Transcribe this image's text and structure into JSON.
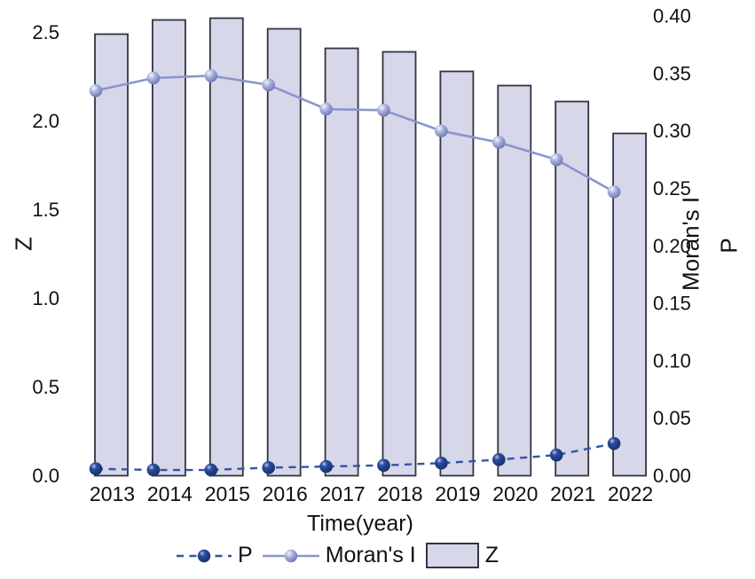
{
  "figure": {
    "xlabel": "Time(year)",
    "ylabel_left": "Z",
    "ylabel_right_line1": "Moran's I",
    "ylabel_right_line2": "P"
  },
  "legend": {
    "p_label": "P",
    "morans_label": "Moran's I",
    "z_label": "Z"
  },
  "colors": {
    "background": "#ffffff",
    "text": "#111111",
    "bar_fill": "#d7d7ea",
    "bar_stroke": "#333340",
    "morans_line": "#8b94cd",
    "morans_marker_highlight": "#f6f7fc",
    "morans_marker_mid": "#aab3de",
    "morans_marker_dark": "#6b76b4",
    "p_line": "#3254a6",
    "p_marker_highlight": "#b9c8ec",
    "p_marker_mid": "#2b4c9f",
    "p_marker_dark": "#173068"
  },
  "chart_data": {
    "type": "combo",
    "categories": [
      "2013",
      "2014",
      "2015",
      "2016",
      "2017",
      "2018",
      "2019",
      "2020",
      "2021",
      "2022"
    ],
    "series": [
      {
        "name": "Z",
        "type": "bar",
        "axis": "left",
        "values": [
          2.49,
          2.57,
          2.58,
          2.52,
          2.41,
          2.39,
          2.28,
          2.2,
          2.11,
          1.93
        ]
      },
      {
        "name": "Moran's I",
        "type": "line",
        "style": "solid",
        "axis": "right",
        "values": [
          0.335,
          0.346,
          0.348,
          0.34,
          0.319,
          0.318,
          0.3,
          0.29,
          0.275,
          0.247
        ]
      },
      {
        "name": "P",
        "type": "line",
        "style": "dashed",
        "axis": "right",
        "values": [
          0.006,
          0.005,
          0.005,
          0.007,
          0.008,
          0.009,
          0.011,
          0.014,
          0.018,
          0.028
        ]
      }
    ],
    "title": "",
    "xlabel": "Time(year)",
    "ylabel_left": "Z",
    "ylabel_right": "Moran's I / P",
    "left_axis": {
      "min": 0,
      "max": 2.6,
      "tick_labels": [
        "0.0",
        "0.5",
        "1.0",
        "1.5",
        "2.0",
        "2.5"
      ]
    },
    "right_axis": {
      "min": 0,
      "max": 0.4,
      "tick_labels": [
        "0.00",
        "0.05",
        "0.10",
        "0.15",
        "0.20",
        "0.25",
        "0.30",
        "0.35",
        "0.40"
      ]
    },
    "grid": false,
    "legend_position": "bottom"
  }
}
